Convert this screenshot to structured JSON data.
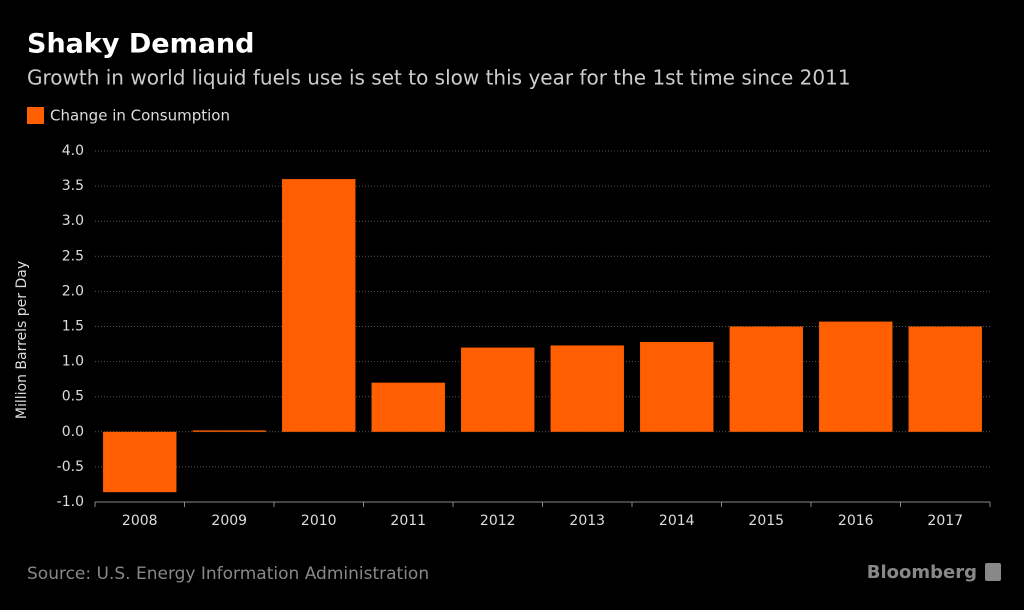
{
  "chart_data": {
    "type": "bar",
    "title": "Shaky Demand",
    "subtitle": "Growth in world liquid fuels use is set to slow this year for the 1st time since 2011",
    "y_label": "Million Barrels per Day",
    "source": "Source: U.S. Energy Information Administration",
    "brand": "Bloomberg",
    "categories": [
      "2008",
      "2009",
      "2010",
      "2011",
      "2012",
      "2013",
      "2014",
      "2015",
      "2016",
      "2017"
    ],
    "series": [
      {
        "name": "Change in Consumption",
        "color": "#ff5f00",
        "values": [
          -0.86,
          0.02,
          3.6,
          0.7,
          1.2,
          1.23,
          1.28,
          1.5,
          1.57,
          1.5
        ]
      }
    ],
    "ylim": [
      -1,
      4
    ],
    "yticks": [
      {
        "value": -1,
        "label": "-1.0"
      },
      -0.5,
      {
        "value": 0,
        "label": "0.0"
      },
      0.5,
      {
        "value": 1,
        "label": "1.0"
      },
      1.5,
      {
        "value": 2,
        "label": "2.0"
      },
      2.5,
      {
        "value": 3,
        "label": "3.0"
      },
      3.5,
      {
        "value": 4,
        "label": "4.0"
      }
    ],
    "grid": true
  }
}
